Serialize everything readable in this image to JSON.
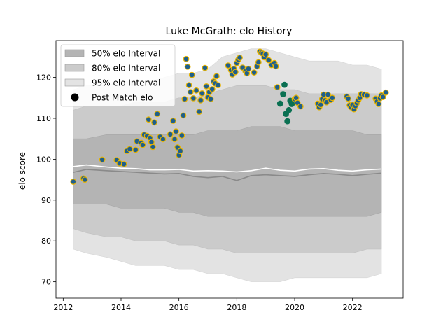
{
  "chart_data": {
    "type": "scatter",
    "title": "Luke McGrath: elo History",
    "xlabel": "",
    "ylabel": "elo score",
    "xlim": [
      2011.75,
      2023.75
    ],
    "ylim": [
      66,
      129
    ],
    "x_ticks": [
      2012,
      2014,
      2016,
      2018,
      2020,
      2022
    ],
    "x_tick_labels": [
      "2012",
      "2014",
      "2016",
      "2018",
      "2020",
      "2022"
    ],
    "y_ticks": [
      70,
      80,
      90,
      100,
      110,
      120
    ],
    "y_tick_labels": [
      "70",
      "80",
      "90",
      "100",
      "110",
      "120"
    ],
    "grid": false,
    "legend": {
      "placement": "top-left",
      "entries": [
        "50% elo Interval",
        "80% elo Interval",
        "95% elo Interval",
        "Post Match elo"
      ]
    },
    "colors": {
      "band_95": "#e3e3e3",
      "band_80": "#cbcbcb",
      "band_50": "#b4b4b4",
      "median_line": "#8a8a8a",
      "mean_line": "#ffffff",
      "point_fill": "#1f5f8b",
      "point_edge": "#e8b400",
      "point_fill_alt": "#0a7052",
      "point_edge_alt": "#0a7052"
    },
    "bands": {
      "x": [
        2012.35,
        2012.8,
        2013.5,
        2014.0,
        2014.5,
        2015.0,
        2015.5,
        2016.0,
        2016.5,
        2017.0,
        2017.5,
        2018.0,
        2018.5,
        2019.0,
        2019.5,
        2020.0,
        2020.5,
        2021.0,
        2021.5,
        2022.0,
        2022.5,
        2023.0
      ],
      "p95_low": [
        78,
        77,
        76,
        75,
        74,
        74,
        74,
        73,
        73,
        72,
        72,
        71,
        70,
        70,
        70,
        71,
        71,
        71,
        71,
        71,
        71,
        72
      ],
      "p95_high": [
        117,
        118,
        118,
        119,
        119,
        119,
        120,
        121,
        121,
        122,
        125,
        126,
        127,
        127,
        126,
        125,
        124,
        124,
        124,
        123,
        123,
        122
      ],
      "p80_low": [
        83,
        82,
        81,
        81,
        80,
        80,
        80,
        79,
        79,
        78,
        78,
        77,
        77,
        77,
        77,
        77,
        77,
        77,
        77,
        77,
        78,
        78
      ],
      "p80_high": [
        112,
        113,
        113,
        113,
        114,
        114,
        114,
        115,
        115,
        116,
        117,
        118,
        118,
        118,
        117,
        117,
        116,
        116,
        116,
        116,
        116,
        116
      ],
      "p50_low": [
        89,
        89,
        89,
        88,
        88,
        88,
        88,
        87,
        87,
        86,
        86,
        86,
        86,
        86,
        86,
        86,
        86,
        86,
        86,
        86,
        86,
        87
      ],
      "p50_high": [
        105,
        105,
        106,
        106,
        106,
        106,
        106,
        106,
        106,
        107,
        107,
        107,
        108,
        108,
        108,
        107,
        107,
        107,
        107,
        107,
        106,
        106
      ],
      "median": [
        96.8,
        97.5,
        97.2,
        97.0,
        96.8,
        96.6,
        96.4,
        96.5,
        95.8,
        95.5,
        95.8,
        94.8,
        96.0,
        96.2,
        96.0,
        95.8,
        96.2,
        96.5,
        96.3,
        96.0,
        96.3,
        96.6
      ],
      "mean": [
        98.2,
        98.6,
        98.1,
        97.8,
        97.7,
        97.4,
        97.4,
        97.5,
        97.1,
        97.2,
        97.1,
        96.9,
        97.2,
        97.8,
        97.3,
        97.1,
        97.6,
        97.7,
        97.3,
        97.1,
        97.4,
        97.6
      ]
    },
    "series": [
      {
        "name": "Post Match elo",
        "x": [
          2012.35,
          2012.7,
          2012.75,
          2013.35,
          2013.85,
          2013.95,
          2014.1,
          2014.2,
          2014.3,
          2014.5,
          2014.55,
          2014.7,
          2014.75,
          2014.8,
          2014.9,
          2014.95,
          2015.0,
          2015.05,
          2015.1,
          2015.15,
          2015.25,
          2015.35,
          2015.45,
          2015.7,
          2015.8,
          2015.85,
          2015.9,
          2015.95,
          2016.0,
          2016.05,
          2016.1,
          2016.15,
          2016.2,
          2016.25,
          2016.3,
          2016.35,
          2016.4,
          2016.45,
          2016.5,
          2016.6,
          2016.7,
          2016.75,
          2016.8,
          2016.9,
          2016.95,
          2017.0,
          2017.05,
          2017.1,
          2017.15,
          2017.2,
          2017.25,
          2017.3,
          2017.35,
          2017.7,
          2017.8,
          2017.85,
          2017.9,
          2017.95,
          2018.0,
          2018.05,
          2018.1,
          2018.2,
          2018.3,
          2018.35,
          2018.4,
          2018.6,
          2018.7,
          2018.75,
          2018.8,
          2018.85,
          2018.9,
          2018.95,
          2019.0,
          2019.1,
          2019.2,
          2019.3,
          2019.35,
          2019.4,
          2019.5,
          2019.6,
          2019.65,
          2019.7,
          2019.75,
          2019.8,
          2019.85,
          2019.9,
          2020.0,
          2020.05,
          2020.1,
          2020.2,
          2020.8,
          2020.85,
          2020.9,
          2020.95,
          2021.0,
          2021.05,
          2021.1,
          2021.15,
          2021.25,
          2021.3,
          2021.8,
          2021.85,
          2021.9,
          2021.95,
          2022.0,
          2022.05,
          2022.1,
          2022.15,
          2022.2,
          2022.25,
          2022.3,
          2022.4,
          2022.5,
          2022.8,
          2022.85,
          2022.9,
          2022.95,
          2023.0,
          2023.05,
          2023.15
        ],
        "y": [
          94.5,
          95.3,
          95.0,
          99.9,
          99.8,
          99.0,
          98.8,
          102.0,
          102.5,
          102.3,
          104.4,
          104.0,
          103.5,
          106.0,
          105.7,
          109.7,
          105.2,
          104.2,
          103.0,
          109.0,
          111.1,
          105.5,
          104.9,
          106.1,
          109.4,
          104.9,
          106.8,
          102.9,
          101.0,
          102.0,
          105.8,
          110.7,
          114.7,
          124.5,
          122.6,
          118.1,
          116.4,
          120.6,
          114.9,
          116.8,
          111.6,
          114.4,
          116.1,
          122.3,
          117.8,
          115.1,
          116.4,
          114.7,
          117.1,
          119.0,
          118.5,
          120.3,
          118.1,
          122.9,
          121.8,
          120.7,
          122.1,
          121.3,
          123.5,
          124.3,
          124.8,
          122.4,
          121.5,
          121.0,
          122.1,
          121.2,
          122.7,
          123.7,
          126.3,
          126.0,
          125.8,
          124.9,
          125.6,
          124.2,
          123.0,
          123.5,
          122.7,
          117.6,
          113.6,
          115.9,
          118.2,
          111.1,
          109.3,
          112.0,
          114.3,
          113.5,
          114.7,
          115.0,
          113.8,
          112.9,
          113.6,
          112.7,
          113.3,
          114.7,
          115.8,
          114.4,
          113.9,
          115.8,
          114.5,
          115.0,
          115.3,
          114.8,
          113.2,
          112.7,
          113.3,
          112.2,
          113.0,
          113.7,
          114.4,
          115.0,
          115.9,
          115.8,
          115.6,
          114.8,
          114.1,
          113.5,
          114.9,
          115.6,
          115.2,
          116.3
        ],
        "alt_from_index": 78
      }
    ]
  }
}
